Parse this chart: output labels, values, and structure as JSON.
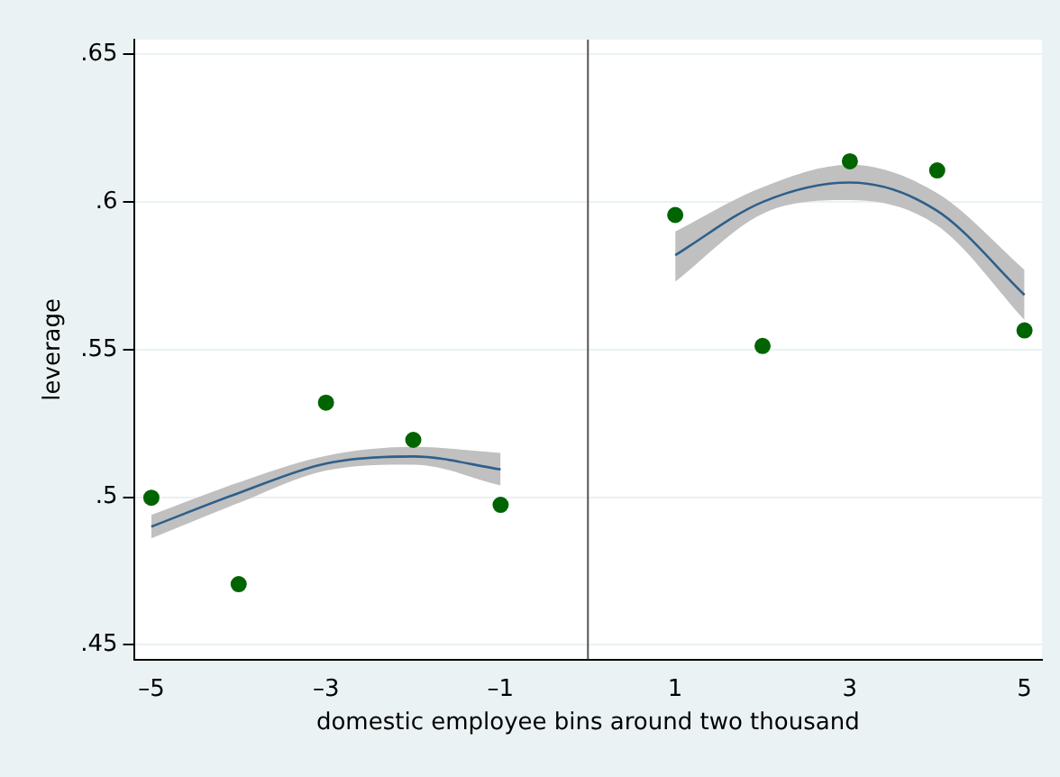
{
  "chart_data": {
    "type": "scatter",
    "xlabel": "domestic employee bins around two thousand",
    "ylabel": "leverage",
    "xlim": [
      -5.2,
      5.2
    ],
    "ylim": [
      0.445,
      0.655
    ],
    "xticks": [
      {
        "value": -5,
        "label": "–5"
      },
      {
        "value": -3,
        "label": "–3"
      },
      {
        "value": -1,
        "label": "–1"
      },
      1,
      3,
      5
    ],
    "yticks": [
      {
        "value": 0.45,
        "label": ".45"
      },
      {
        "value": 0.5,
        "label": ".5"
      },
      {
        "value": 0.55,
        "label": ".55"
      },
      {
        "value": 0.6,
        "label": ".6"
      },
      {
        "value": 0.65,
        "label": ".65"
      }
    ],
    "grid": "y",
    "legend": false,
    "ref_lines": [
      {
        "axis": "x",
        "value": 0,
        "color": "#555555"
      }
    ],
    "series": [
      {
        "marker": "circle",
        "color": "#006400",
        "x": [
          -5,
          -4,
          -3,
          -2,
          -1,
          1,
          2,
          3,
          4,
          5
        ],
        "values": [
          0.4998,
          0.4705,
          0.532,
          0.5194,
          0.4974,
          0.5956,
          0.5512,
          0.6138,
          0.6107,
          0.5565
        ]
      },
      {
        "type": "line",
        "marker": "none",
        "color": "#2f5f8a",
        "x": [
          -5,
          -4,
          -3,
          -2,
          -1
        ],
        "values": [
          0.49,
          0.5014,
          0.5114,
          0.5138,
          0.5094
        ],
        "lower": [
          0.486,
          0.498,
          0.509,
          0.511,
          0.504
        ],
        "upper": [
          0.494,
          0.505,
          0.514,
          0.517,
          0.515
        ]
      },
      {
        "type": "line",
        "marker": "none",
        "color": "#2f5f8a",
        "x": [
          1,
          2,
          3,
          4,
          5
        ],
        "values": [
          0.582,
          0.6,
          0.6066,
          0.597,
          0.5685
        ],
        "lower": [
          0.573,
          0.596,
          0.6006,
          0.592,
          0.56
        ],
        "upper": [
          0.59,
          0.605,
          0.6126,
          0.603,
          0.577
        ]
      }
    ]
  }
}
